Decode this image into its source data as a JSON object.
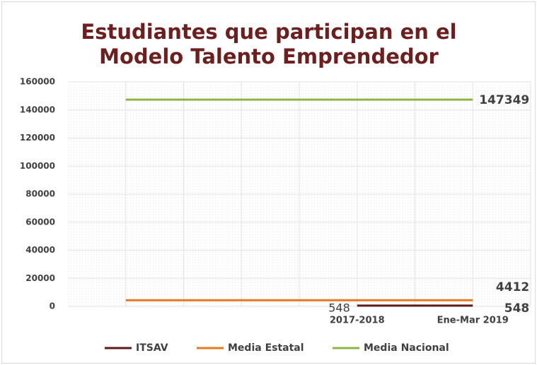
{
  "chart_data": {
    "type": "line",
    "title": "Estudiantes que participan en el Modelo Talento Emprendedor",
    "categories": [
      null,
      null,
      null,
      null,
      "2017-2018",
      null,
      "Ene-Mar 2019"
    ],
    "series": [
      {
        "name": "ITSAV",
        "color": "#5c1a1a",
        "values": [
          null,
          null,
          null,
          null,
          548,
          548,
          548
        ],
        "labels_at": [
          4,
          6
        ]
      },
      {
        "name": "Media Estatal",
        "color": "#e87722",
        "values": [
          4412,
          4412,
          4412,
          4412,
          4412,
          4412,
          4412
        ],
        "labels_at": [
          6
        ]
      },
      {
        "name": "Media Nacional",
        "color": "#8db443",
        "values": [
          147349,
          147349,
          147349,
          147349,
          147349,
          147349,
          147349
        ],
        "labels_at": [
          6
        ]
      }
    ],
    "ylim": [
      0,
      160000
    ],
    "yticks": [
      0,
      20000,
      40000,
      60000,
      80000,
      100000,
      120000,
      140000,
      160000
    ],
    "grid": true,
    "legend": "bottom"
  }
}
